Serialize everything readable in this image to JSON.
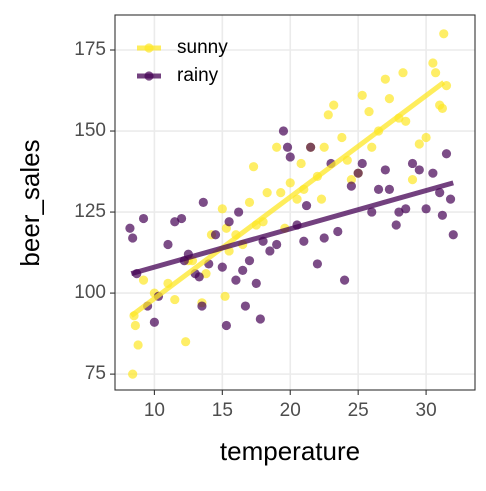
{
  "chart_data": {
    "type": "scatter",
    "x_label": "temperature",
    "y_label": "beer_sales",
    "xlim": [
      7.1,
      33.6
    ],
    "ylim": [
      70.1,
      185.8
    ],
    "xticks": [
      10,
      15,
      20,
      25,
      30
    ],
    "yticks": [
      75,
      100,
      125,
      150,
      175
    ],
    "grid": true,
    "legend": "top-left",
    "series": [
      {
        "name": "sunny",
        "color": "#FDE725",
        "x": [
          8.4,
          8.6,
          8.8,
          8.5,
          9.2,
          10,
          11,
          11.5,
          12.3,
          12.8,
          13.5,
          13.8,
          14.2,
          15,
          15.3,
          15.5,
          16,
          16.5,
          17,
          17.3,
          18,
          18.3,
          19,
          19.3,
          20,
          20.5,
          20.8,
          21,
          21.5,
          22,
          22.5,
          22.8,
          23.2,
          23.8,
          24.2,
          25,
          25.3,
          25.8,
          26,
          26.5,
          27,
          27.3,
          28,
          28.3,
          28.5,
          29,
          29.5,
          30,
          30.5,
          30.7,
          31,
          31.3,
          31.5,
          31.2,
          15.2,
          17.5,
          19.6,
          22.3,
          24.5,
          12.5
        ],
        "values": [
          75,
          90,
          84,
          93,
          104,
          100,
          103,
          98,
          85,
          110,
          97,
          106,
          118,
          126,
          120,
          113,
          118,
          115,
          128,
          139,
          122,
          131,
          145,
          131,
          134,
          129,
          140,
          132,
          145,
          136,
          145,
          155,
          158,
          148,
          141,
          137,
          161,
          156,
          145,
          150,
          166,
          160,
          154,
          168,
          153,
          135,
          146,
          148,
          171,
          168,
          158,
          180,
          164,
          157,
          99,
          121,
          120,
          129,
          135,
          110
        ],
        "fit": {
          "x": [
            8.3,
            31.3
          ],
          "values": [
            93,
            165
          ]
        }
      },
      {
        "name": "rainy",
        "color": "#440154",
        "x": [
          8.2,
          8.4,
          8.7,
          9.2,
          9.5,
          10,
          10.3,
          11,
          11.5,
          12,
          12.2,
          12.5,
          13,
          13.3,
          13.6,
          14,
          14.5,
          15,
          15.5,
          16,
          16.2,
          16.5,
          16.7,
          17,
          17.5,
          17.8,
          18,
          18.5,
          19,
          19.5,
          19.8,
          20,
          20.5,
          21,
          21.2,
          21.5,
          22,
          22.5,
          23,
          23.5,
          24,
          24.5,
          25,
          25.3,
          26,
          26.5,
          27,
          27.3,
          27.8,
          28,
          28.5,
          29,
          29.5,
          30,
          30.5,
          31,
          31.2,
          31.5,
          31.8,
          32,
          15.3,
          13.5
        ],
        "values": [
          120,
          117,
          106,
          123,
          96,
          91,
          99,
          115,
          122,
          123,
          110,
          112,
          106,
          105,
          128,
          109,
          118,
          108,
          122,
          104,
          125,
          107,
          96,
          110,
          103,
          92,
          116,
          113,
          115,
          150,
          145,
          142,
          121,
          116,
          127,
          145,
          109,
          117,
          140,
          119,
          104,
          133,
          137,
          140,
          125,
          132,
          138,
          132,
          121,
          125,
          126,
          140,
          138,
          126,
          137,
          131,
          124,
          143,
          129,
          118,
          90,
          96
        ],
        "fit": {
          "x": [
            8.3,
            32.0
          ],
          "values": [
            106,
            134
          ]
        }
      }
    ]
  }
}
